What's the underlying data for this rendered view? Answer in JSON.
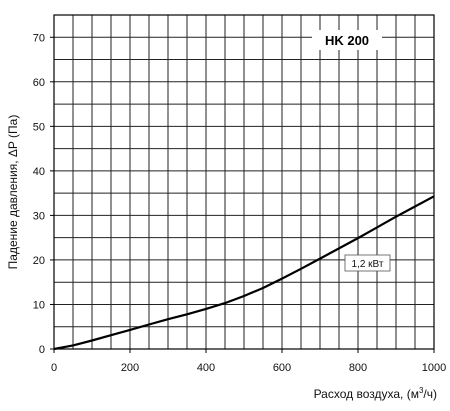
{
  "chart_data": {
    "type": "line",
    "title": "HK 200",
    "xlabel": "Расход воздуха, (м",
    "xlabel_sup": "3",
    "xlabel_tail": "/ч)",
    "ylabel": "Падение давления, ΔP (Па)",
    "xlim": [
      0,
      1000
    ],
    "ylim": [
      0,
      75
    ],
    "x_ticks": [
      0,
      200,
      400,
      600,
      800,
      1000
    ],
    "y_ticks": [
      0,
      10,
      20,
      30,
      40,
      50,
      60,
      70
    ],
    "x_tick_labels": [
      "0",
      "200",
      "400",
      "600",
      "800",
      "1000"
    ],
    "y_tick_labels": [
      "0",
      "10",
      "20",
      "30",
      "40",
      "50",
      "60",
      "70"
    ],
    "grid": true,
    "series": [
      {
        "name": "1,2 кВт",
        "x": [
          0,
          50,
          100,
          150,
          200,
          250,
          300,
          350,
          400,
          450,
          500,
          550,
          600,
          650,
          700,
          750,
          800,
          850,
          900,
          950,
          1000
        ],
        "y": [
          0,
          0.8,
          1.9,
          3.1,
          4.3,
          5.5,
          6.7,
          7.8,
          9.0,
          10.3,
          11.9,
          13.7,
          15.8,
          18.0,
          20.3,
          22.6,
          24.9,
          27.3,
          29.7,
          32.0,
          34.3
        ]
      }
    ],
    "annotations": [
      {
        "text": "1,2 кВт"
      }
    ]
  }
}
